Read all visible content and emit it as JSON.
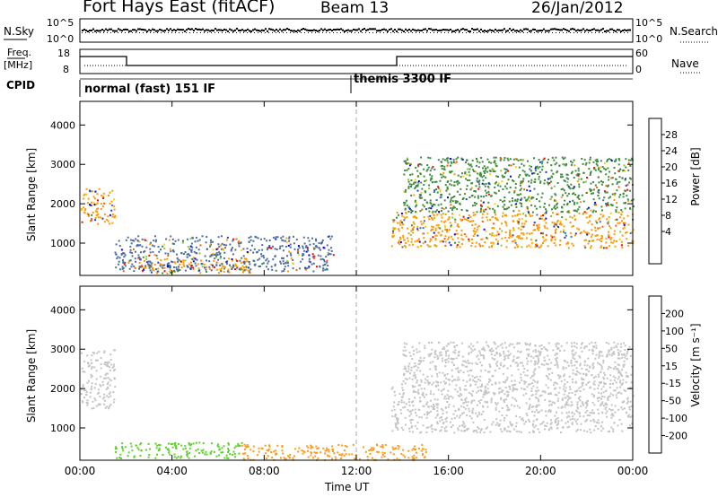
{
  "header": {
    "station": "Fort Hays East (fitACF)",
    "beam": "Beam 13",
    "date": "26/Jan/2012"
  },
  "top_panel": {
    "left_label": "N.Sky",
    "right_label": "N.Search",
    "left_ticks": [
      "10^5",
      "10^0"
    ],
    "right_ticks": [
      "10^5",
      "10^0"
    ]
  },
  "freq_panel": {
    "left_label_1": "Freq.",
    "left_label_2": "[MHz]",
    "left_ticks": [
      "18",
      "8"
    ],
    "right_ticks": [
      "60",
      "0"
    ],
    "right_label": "Nave"
  },
  "cpid": {
    "label": "CPID",
    "mode_1": "normal (fast) 151 IF",
    "mode_2": "themis 3300 IF"
  },
  "power_colorbar": {
    "title": "Power [dB]",
    "ticks": [
      "28",
      "24",
      "20",
      "16",
      "12",
      "8",
      "4"
    ],
    "colors": [
      "#ff0000",
      "#ff5a00",
      "#ff9a00",
      "#ffd000",
      "#8cc832",
      "#3c8c3c",
      "#4c6fa0",
      "#1e3cc8",
      "#0000ff"
    ]
  },
  "velocity_colorbar": {
    "title": "Velocity [m s⁻¹]",
    "ticks": [
      "200",
      "100",
      "50",
      "15",
      "-15",
      "-50",
      "-100",
      "-200"
    ],
    "colors": [
      "#1a3ea6",
      "#2a7ab0",
      "#3e8e4a",
      "#5ecf2a",
      "#c4c4c4",
      "#ff9a1a",
      "#ff6a00",
      "#ff3000",
      "#ff0000"
    ]
  },
  "chart_data": [
    {
      "type": "heatmap",
      "title": "",
      "ylabel": "Slant Range [km]",
      "ylim": [
        180,
        4600
      ],
      "yticks": [
        1000,
        2000,
        3000,
        4000
      ],
      "xlim": [
        0,
        24
      ],
      "xticks": [
        "00:00",
        "04:00",
        "08:00",
        "12:00",
        "16:00",
        "20:00",
        "00:00"
      ],
      "variable": "Power [dB]",
      "regions": [
        {
          "t0": 0.0,
          "t1": 1.5,
          "r0": 1500,
          "r1": 2400,
          "value": 26
        },
        {
          "t0": 2.5,
          "t1": 7.5,
          "r0": 250,
          "r1": 650,
          "value": 24
        },
        {
          "t0": 1.5,
          "t1": 11.0,
          "r0": 300,
          "r1": 1200,
          "value": 8
        },
        {
          "t0": 13.5,
          "t1": 24.0,
          "r0": 900,
          "r1": 1800,
          "value": 26
        },
        {
          "t0": 14.0,
          "t1": 24.0,
          "r0": 1800,
          "r1": 3200,
          "value": 12
        }
      ]
    },
    {
      "type": "heatmap",
      "title": "",
      "ylabel": "Slant Range [km]",
      "xlabel": "Time UT",
      "ylim": [
        180,
        4600
      ],
      "yticks": [
        1000,
        2000,
        3000,
        4000
      ],
      "xlim": [
        0,
        24
      ],
      "xticks": [
        "00:00",
        "04:00",
        "08:00",
        "12:00",
        "16:00",
        "20:00",
        "00:00"
      ],
      "variable": "Velocity [m s⁻¹]",
      "regions": [
        {
          "t0": 0.0,
          "t1": 1.5,
          "r0": 1500,
          "r1": 3000,
          "value": 0
        },
        {
          "t0": 1.5,
          "t1": 7.0,
          "r0": 250,
          "r1": 650,
          "value": 30
        },
        {
          "t0": 7.0,
          "t1": 15.0,
          "r0": 200,
          "r1": 600,
          "value": -40
        },
        {
          "t0": 13.5,
          "t1": 24.0,
          "r0": 900,
          "r1": 2200,
          "value": 0
        },
        {
          "t0": 14.0,
          "t1": 24.0,
          "r0": 2200,
          "r1": 3200,
          "value": 0
        }
      ]
    }
  ],
  "xlabel": "Time UT"
}
